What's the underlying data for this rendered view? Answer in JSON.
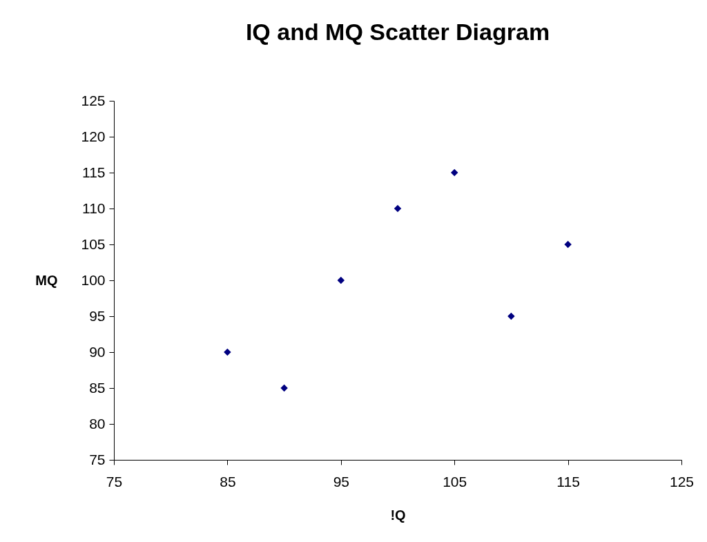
{
  "chart_data": {
    "type": "scatter",
    "title": "IQ and MQ Scatter Diagram",
    "xlabel": "!Q",
    "ylabel": "MQ",
    "x": [
      85,
      90,
      95,
      100,
      105,
      110,
      115
    ],
    "series": [
      {
        "color": "#000080",
        "values": [
          90,
          85,
          100,
          110,
          115,
          95,
          105
        ]
      }
    ],
    "xlim": [
      75,
      125
    ],
    "xticks": [
      75,
      85,
      95,
      105,
      115,
      125
    ],
    "ylim": [
      75,
      125
    ],
    "yticks": [
      75,
      80,
      85,
      90,
      95,
      100,
      105,
      110,
      115,
      120,
      125
    ],
    "grid": false,
    "legend": false,
    "marker": "diamond"
  }
}
